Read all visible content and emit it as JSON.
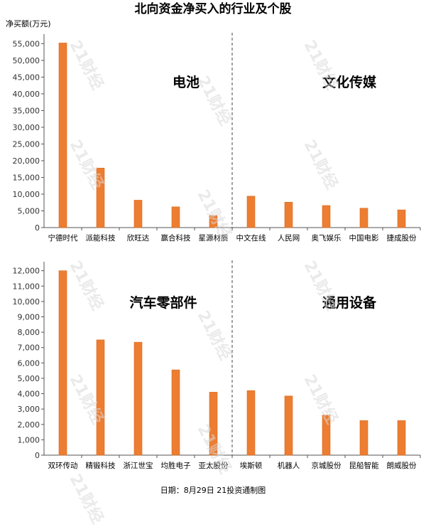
{
  "title": "北向资金净买入的行业及个股",
  "unit_label": "净买额(万元)",
  "footer": "日期：8月29日 21投资通制图",
  "watermark": "21财经",
  "colors": {
    "bar": "#ed7d31",
    "bar_edge": "#d86a20",
    "axis": "#555555"
  },
  "chart_data": [
    {
      "type": "bar",
      "ylim": [
        0,
        57000
      ],
      "yticks": [
        0,
        5000,
        10000,
        15000,
        20000,
        25000,
        30000,
        35000,
        40000,
        45000,
        50000,
        55000
      ],
      "ytick_labels": [
        "0",
        "5,000",
        "10,000",
        "15,000",
        "20,000",
        "25,000",
        "30,000",
        "35,000",
        "40,000",
        "45,000",
        "50,000",
        "55,000"
      ],
      "categories": [
        "宁德时代",
        "派能科技",
        "欣旺达",
        "赢合科技",
        "星源材质",
        "中文在线",
        "人民网",
        "奥飞娱乐",
        "中国电影",
        "捷成股份"
      ],
      "values": [
        55200,
        17800,
        8200,
        6200,
        3600,
        9400,
        7600,
        6600,
        5800,
        5300
      ],
      "groups": [
        "电池",
        "文化传媒"
      ]
    },
    {
      "type": "bar",
      "ylim": [
        0,
        12400
      ],
      "yticks": [
        0,
        1000,
        2000,
        3000,
        4000,
        5000,
        6000,
        7000,
        8000,
        9000,
        10000,
        11000,
        12000
      ],
      "ytick_labels": [
        "0",
        "1,000",
        "2,000",
        "3,000",
        "4,000",
        "5,000",
        "6,000",
        "7,000",
        "8,000",
        "9,000",
        "10,000",
        "11,000",
        "12,000"
      ],
      "categories": [
        "双环传动",
        "精锻科技",
        "浙江世宝",
        "均胜电子",
        "亚太股份",
        "埃斯顿",
        "机器人",
        "京城股份",
        "昆船智能",
        "朗威股份"
      ],
      "values": [
        12000,
        7500,
        7350,
        5550,
        4100,
        4200,
        3850,
        2600,
        2250,
        2250
      ],
      "groups": [
        "汽车零部件",
        "通用设备"
      ]
    }
  ]
}
